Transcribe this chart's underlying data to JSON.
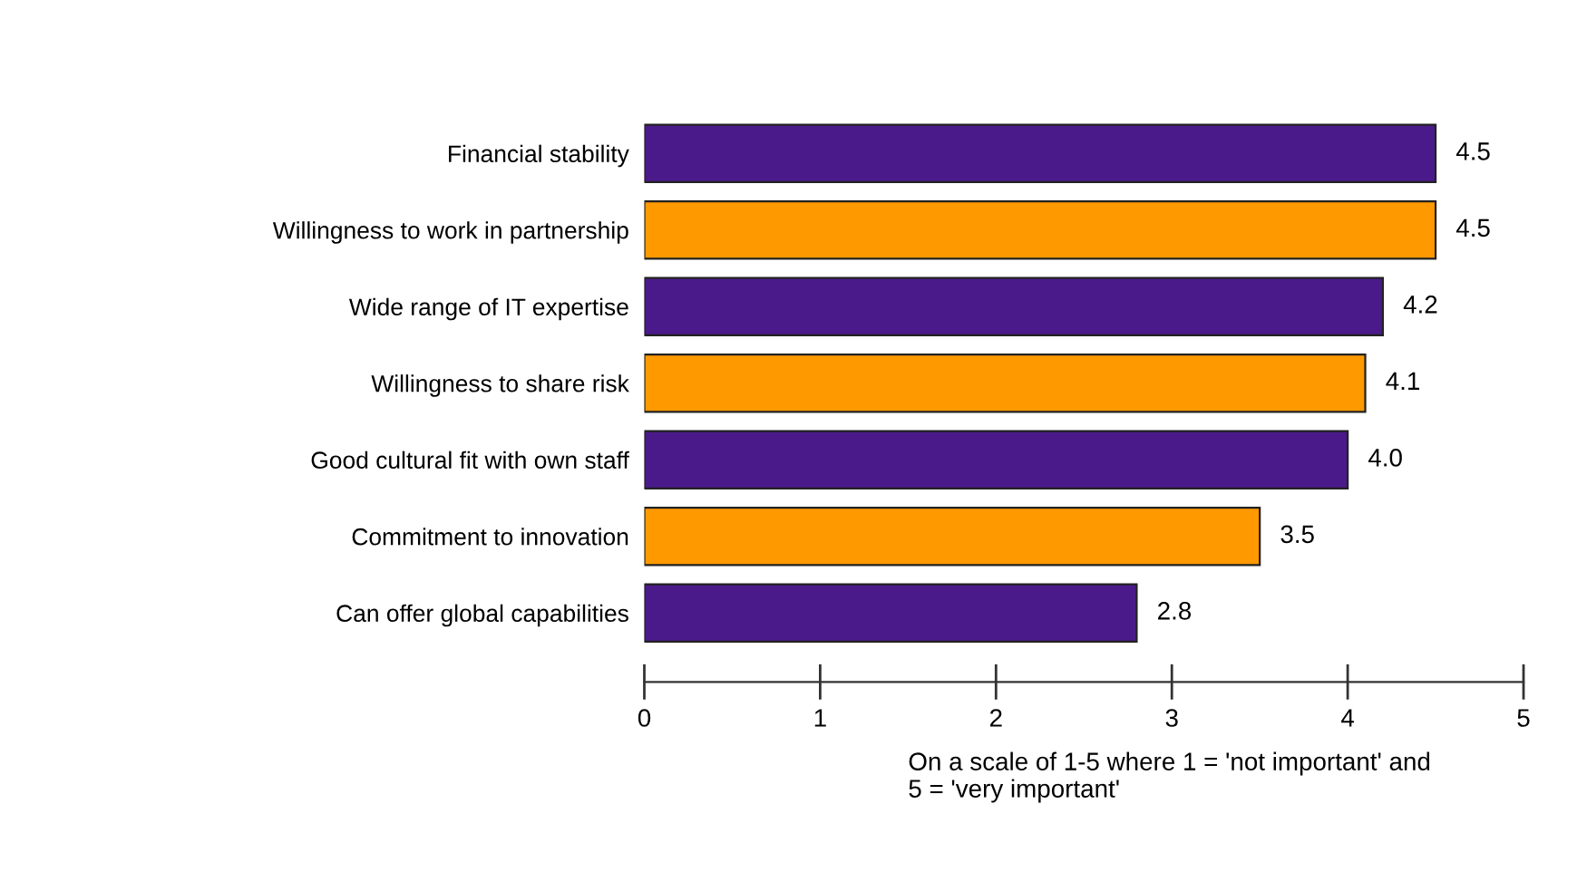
{
  "chart_data": {
    "type": "bar",
    "orientation": "horizontal",
    "categories": [
      "Financial stability",
      "Willingness to work in partnership",
      "Wide range of IT expertise",
      "Willingness to share risk",
      "Good cultural fit with own staff",
      "Commitment to innovation",
      "Can offer global capabilities"
    ],
    "values": [
      4.5,
      4.5,
      4.2,
      4.1,
      4.0,
      3.5,
      2.8
    ],
    "value_labels": [
      "4.5",
      "4.5",
      "4.2",
      "4.1",
      "4.0",
      "3.5",
      "2.8"
    ],
    "colors": [
      "#4b1a8a",
      "#ff9900",
      "#4b1a8a",
      "#ff9900",
      "#4b1a8a",
      "#ff9900",
      "#4b1a8a"
    ],
    "xlim": [
      0,
      5
    ],
    "xticks": [
      0,
      1,
      2,
      3,
      4,
      5
    ],
    "xlabel": "On a scale of 1-5 where 1 = 'not important' and\n5 = 'very important'",
    "grid": false,
    "legend": false
  }
}
